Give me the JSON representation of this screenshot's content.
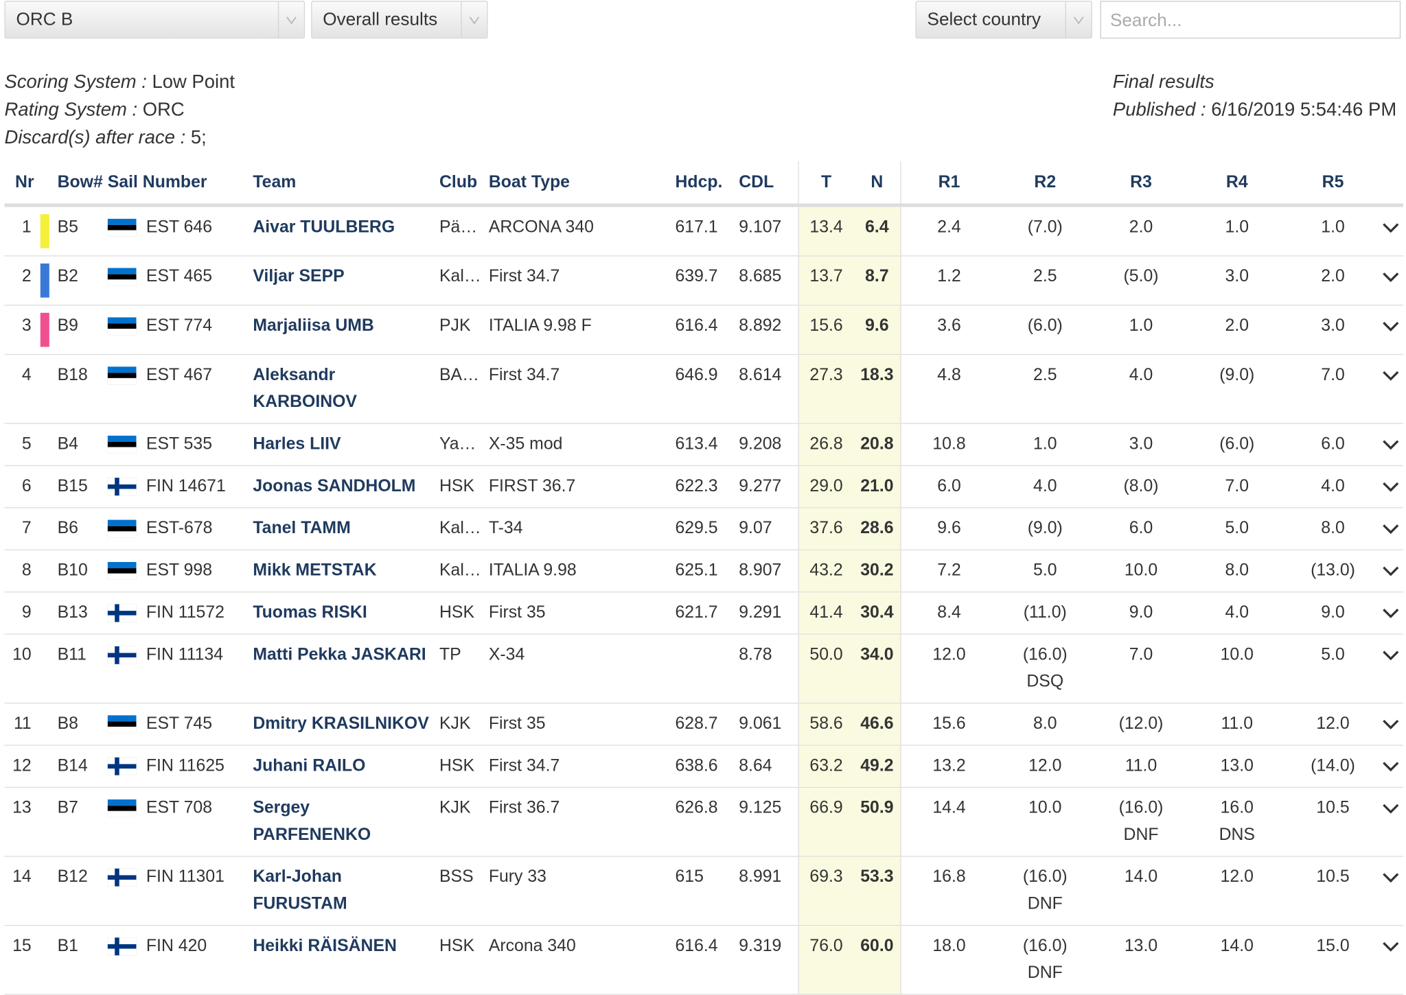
{
  "controls": {
    "class_select": "ORC B",
    "view_select": "Overall results",
    "country_select": "Select country",
    "search_placeholder": "Search..."
  },
  "info": {
    "left": [
      {
        "label": "Scoring System :",
        "value": "Low Point"
      },
      {
        "label": "Rating System :",
        "value": "ORC"
      },
      {
        "label": "Discard(s) after race :",
        "value": "5;"
      }
    ],
    "status": "Final results",
    "published": {
      "label": "Published :",
      "value": "6/16/2019 5:54:46 PM"
    }
  },
  "table": {
    "columns": {
      "nr": "Nr",
      "bow": "Bow#",
      "sail": "Sail Number",
      "team": "Team",
      "club": "Club",
      "boat": "Boat Type",
      "hdcp": "Hdcp.",
      "cdl": "CDL",
      "t": "T",
      "n": "N",
      "races": [
        "R1",
        "R2",
        "R3",
        "R4",
        "R5"
      ]
    },
    "rows": [
      {
        "nr": "1",
        "color": "#f5f03a",
        "bow": "B5",
        "country": "EST",
        "sail": "EST 646",
        "team": "Aivar TUULBERG",
        "club": "Pä…",
        "boat": "ARCONA 340",
        "hdcp": "617.1",
        "cdl": "9.107",
        "t": "13.4",
        "n": "6.4",
        "races": [
          "2.4",
          "(7.0)",
          "2.0",
          "1.0",
          "1.0"
        ]
      },
      {
        "nr": "2",
        "color": "#3a78d8",
        "bow": "B2",
        "country": "EST",
        "sail": "EST 465",
        "team": "Viljar SEPP",
        "club": "Kal…",
        "boat": "First 34.7",
        "hdcp": "639.7",
        "cdl": "8.685",
        "t": "13.7",
        "n": "8.7",
        "races": [
          "1.2",
          "2.5",
          "(5.0)",
          "3.0",
          "2.0"
        ]
      },
      {
        "nr": "3",
        "color": "#f0508f",
        "bow": "B9",
        "country": "EST",
        "sail": "EST 774",
        "team": "Marjaliisa UMB",
        "club": "PJK",
        "boat": "ITALIA 9.98 F",
        "hdcp": "616.4",
        "cdl": "8.892",
        "t": "15.6",
        "n": "9.6",
        "races": [
          "3.6",
          "(6.0)",
          "1.0",
          "2.0",
          "3.0"
        ]
      },
      {
        "nr": "4",
        "bow": "B18",
        "country": "EST",
        "sail": "EST 467",
        "team": "Aleksandr KARBOINOV",
        "club": "BA…",
        "boat": "First 34.7",
        "hdcp": "646.9",
        "cdl": "8.614",
        "t": "27.3",
        "n": "18.3",
        "races": [
          "4.8",
          "2.5",
          "4.0",
          "(9.0)",
          "7.0"
        ]
      },
      {
        "nr": "5",
        "bow": "B4",
        "country": "EST",
        "sail": "EST 535",
        "team": "Harles LIIV",
        "club": "Ya…",
        "boat": "X-35 mod",
        "hdcp": "613.4",
        "cdl": "9.208",
        "t": "26.8",
        "n": "20.8",
        "races": [
          "10.8",
          "1.0",
          "3.0",
          "(6.0)",
          "6.0"
        ]
      },
      {
        "nr": "6",
        "bow": "B15",
        "country": "FIN",
        "sail": "FIN 14671",
        "team": "Joonas SANDHOLM",
        "club": "HSK",
        "boat": "FIRST 36.7",
        "hdcp": "622.3",
        "cdl": "9.277",
        "t": "29.0",
        "n": "21.0",
        "races": [
          "6.0",
          "4.0",
          "(8.0)",
          "7.0",
          "4.0"
        ]
      },
      {
        "nr": "7",
        "bow": "B6",
        "country": "EST",
        "sail": "EST-678",
        "team": "Tanel TAMM",
        "club": "Kal…",
        "boat": "T-34",
        "hdcp": "629.5",
        "cdl": "9.07",
        "t": "37.6",
        "n": "28.6",
        "races": [
          "9.6",
          "(9.0)",
          "6.0",
          "5.0",
          "8.0"
        ]
      },
      {
        "nr": "8",
        "bow": "B10",
        "country": "EST",
        "sail": "EST 998",
        "team": "Mikk METSTAK",
        "club": "Kal…",
        "boat": "ITALIA 9.98",
        "hdcp": "625.1",
        "cdl": "8.907",
        "t": "43.2",
        "n": "30.2",
        "races": [
          "7.2",
          "5.0",
          "10.0",
          "8.0",
          "(13.0)"
        ]
      },
      {
        "nr": "9",
        "bow": "B13",
        "country": "FIN",
        "sail": "FIN 11572",
        "team": "Tuomas RISKI",
        "club": "HSK",
        "boat": "First 35",
        "hdcp": "621.7",
        "cdl": "9.291",
        "t": "41.4",
        "n": "30.4",
        "races": [
          "8.4",
          "(11.0)",
          "9.0",
          "4.0",
          "9.0"
        ]
      },
      {
        "nr": "10",
        "bow": "B11",
        "country": "FIN",
        "sail": "FIN 11134",
        "team": "Matti Pekka JASKARI",
        "club": "TP",
        "boat": "X-34",
        "hdcp": null,
        "cdl": "8.78",
        "t": "50.0",
        "n": "34.0",
        "races": [
          "12.0",
          {
            "score": "(16.0)",
            "code": "DSQ"
          },
          "7.0",
          "10.0",
          "5.0"
        ]
      },
      {
        "nr": "11",
        "bow": "B8",
        "country": "EST",
        "sail": "EST 745",
        "team": "Dmitry KRASILNIKOV",
        "club": "KJK",
        "boat": "First 35",
        "hdcp": "628.7",
        "cdl": "9.061",
        "t": "58.6",
        "n": "46.6",
        "races": [
          "15.6",
          "8.0",
          "(12.0)",
          "11.0",
          "12.0"
        ]
      },
      {
        "nr": "12",
        "bow": "B14",
        "country": "FIN",
        "sail": "FIN 11625",
        "team": "Juhani RAILO",
        "club": "HSK",
        "boat": "First 34.7",
        "hdcp": "638.6",
        "cdl": "8.64",
        "t": "63.2",
        "n": "49.2",
        "races": [
          "13.2",
          "12.0",
          "11.0",
          "13.0",
          "(14.0)"
        ]
      },
      {
        "nr": "13",
        "bow": "B7",
        "country": "EST",
        "sail": "EST 708",
        "team": "Sergey PARFENENKO",
        "club": "KJK",
        "boat": "First 36.7",
        "hdcp": "626.8",
        "cdl": "9.125",
        "t": "66.9",
        "n": "50.9",
        "races": [
          "14.4",
          "10.0",
          {
            "score": "(16.0)",
            "code": "DNF"
          },
          {
            "score": "16.0",
            "code": "DNS"
          },
          "10.5"
        ]
      },
      {
        "nr": "14",
        "bow": "B12",
        "country": "FIN",
        "sail": "FIN 11301",
        "team": "Karl-Johan FURUSTAM",
        "club": "BSS",
        "boat": "Fury 33",
        "hdcp": "615",
        "cdl": "8.991",
        "t": "69.3",
        "n": "53.3",
        "races": [
          "16.8",
          {
            "score": "(16.0)",
            "code": "DNF"
          },
          "14.0",
          "12.0",
          "10.5"
        ]
      },
      {
        "nr": "15",
        "bow": "B1",
        "country": "FIN",
        "sail": "FIN 420",
        "team": "Heikki RÄISÄNEN",
        "club": "HSK",
        "boat": "Arcona 340",
        "hdcp": "616.4",
        "cdl": "9.319",
        "t": "76.0",
        "n": "60.0",
        "races": [
          "18.0",
          {
            "score": "(16.0)",
            "code": "DNF"
          },
          "13.0",
          "14.0",
          "15.0"
        ]
      }
    ]
  }
}
